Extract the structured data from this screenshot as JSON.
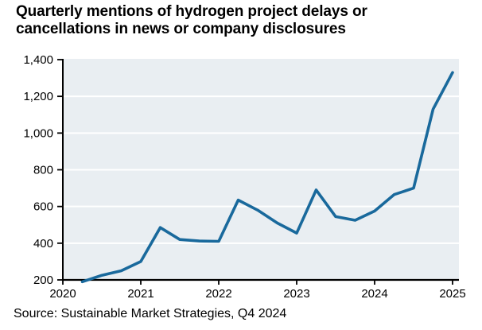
{
  "title": "Quarterly mentions of hydrogen project delays or cancellations in news or company disclosures",
  "source": "Source: Sustainable Market Strategies, Q4 2024",
  "colors": {
    "line": "#19699c",
    "plot_bg": "#e9eef2",
    "grid": "#ffffff",
    "axis": "#000000",
    "text": "#000000"
  },
  "chart_data": {
    "type": "line",
    "title": "Quarterly mentions of hydrogen project delays or cancellations in news or company disclosures",
    "xlabel": "",
    "ylabel": "",
    "ylim": [
      200,
      1400
    ],
    "y_ticks": [
      200,
      400,
      600,
      800,
      1000,
      1200,
      1400
    ],
    "y_tick_labels": [
      "200",
      "400",
      "600",
      "800",
      "1,000",
      "1,200",
      "1,400"
    ],
    "x_tick_labels": [
      "2020",
      "2021",
      "2022",
      "2023",
      "2024",
      "2025"
    ],
    "grid": "horizontal white gridlines on light blue-gray plot background",
    "legend": "none",
    "series": [
      {
        "name": "Quarterly mentions of hydrogen project delays or cancellations",
        "x": [
          "2020 Q1",
          "2020 Q2",
          "2020 Q3",
          "2020 Q4",
          "2021 Q1",
          "2021 Q2",
          "2021 Q3",
          "2021 Q4",
          "2022 Q1",
          "2022 Q2",
          "2022 Q3",
          "2022 Q4",
          "2023 Q1",
          "2023 Q2",
          "2023 Q3",
          "2023 Q4",
          "2024 Q1",
          "2024 Q2",
          "2024 Q3",
          "2024 Q4"
        ],
        "values": [
          190,
          225,
          250,
          300,
          485,
          420,
          412,
          410,
          635,
          580,
          510,
          455,
          690,
          545,
          525,
          575,
          665,
          700,
          1130,
          1330
        ]
      }
    ]
  }
}
